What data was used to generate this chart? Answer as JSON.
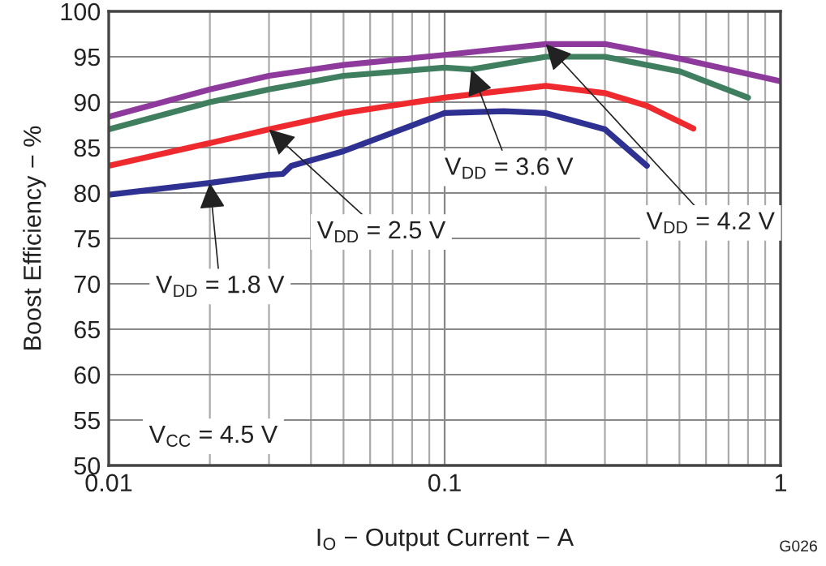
{
  "chart_data": {
    "type": "line",
    "xlabel": "I$_{O}$ − Output Current − A",
    "ylabel": "Boost Efficiency − %",
    "log": "x",
    "grid": true,
    "legend": false,
    "xlim": [
      0.01,
      1
    ],
    "xticks": [
      0.01,
      0.1,
      1
    ],
    "ylim": [
      50,
      100
    ],
    "yticks": [
      50,
      55,
      60,
      65,
      70,
      75,
      80,
      85,
      90,
      95,
      100
    ],
    "series": [
      {
        "name": "V$_{DD}$ = 4.2 V",
        "color": "#8e3a9d",
        "x": [
          0.01,
          0.02,
          0.03,
          0.05,
          0.1,
          0.2,
          0.3,
          0.5,
          1
        ],
        "values": [
          88.4,
          91.4,
          92.9,
          94.1,
          95.2,
          96.4,
          96.4,
          94.8,
          92.3
        ]
      },
      {
        "name": "V$_{DD}$ = 3.6 V",
        "color": "#3f7f5f",
        "x": [
          0.01,
          0.02,
          0.03,
          0.05,
          0.1,
          0.12,
          0.2,
          0.3,
          0.5,
          0.8
        ],
        "values": [
          87,
          90,
          91.4,
          92.9,
          93.8,
          93.6,
          95,
          95,
          93.4,
          90.5
        ]
      },
      {
        "name": "V$_{DD}$ = 2.5 V",
        "color": "#ee2a2f",
        "x": [
          0.01,
          0.02,
          0.03,
          0.05,
          0.1,
          0.2,
          0.3,
          0.4,
          0.55
        ],
        "values": [
          83,
          85.5,
          87,
          88.8,
          90.5,
          91.8,
          91,
          89.6,
          87.1
        ]
      },
      {
        "name": "V$_{DD}$ = 1.8 V",
        "color": "#2e3192",
        "x": [
          0.01,
          0.02,
          0.03,
          0.033,
          0.035,
          0.05,
          0.1,
          0.15,
          0.2,
          0.3,
          0.4
        ],
        "values": [
          79.8,
          81.1,
          82,
          82.1,
          83,
          84.6,
          88.8,
          89,
          88.8,
          87,
          83
        ]
      }
    ],
    "annotations": [
      "V$_{CC}$ = 4.5 V",
      "G026"
    ]
  }
}
